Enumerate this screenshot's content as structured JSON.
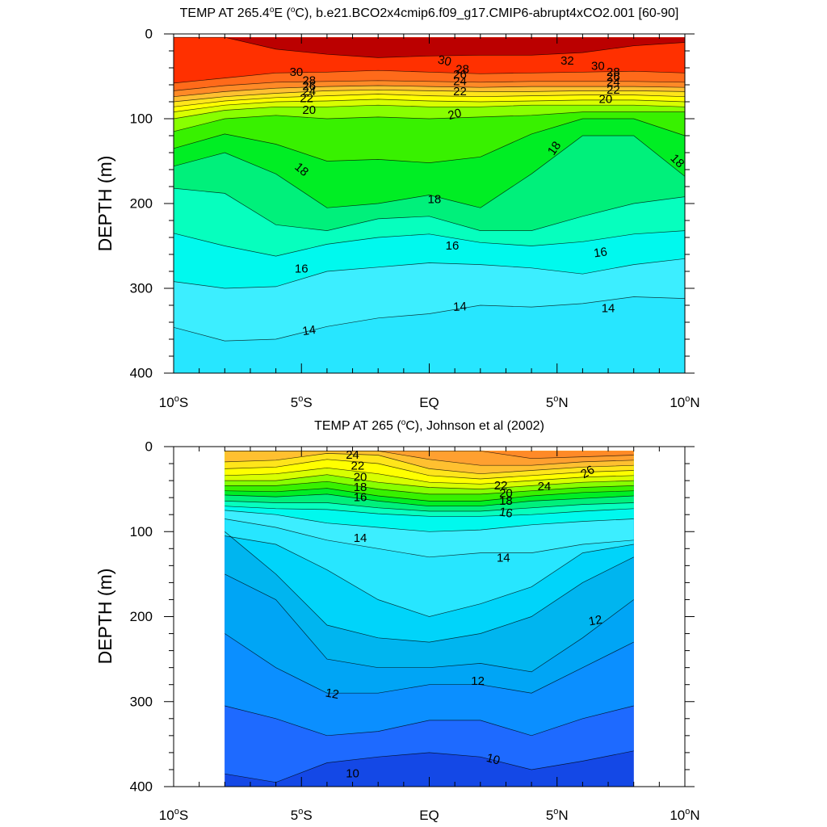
{
  "chart_data": [
    {
      "type": "contour",
      "title": "TEMP AT 265.4°E (°C), b.e21.BCO2x4cmip6.f09_g17.CMIP6-abrupt4xCO2.001 [60-90]",
      "title_parts": {
        "pre": "TEMP AT 265.4",
        "deg": "o",
        "mid": "E (",
        "deg2": "o",
        "post": "C), b.e21.BCO2x4cmip6.f09_g17.CMIP6-abrupt4xCO2.001 [60-90]"
      },
      "ylabel": "DEPTH (m)",
      "xlim": [
        -10,
        10
      ],
      "ylim": [
        0,
        400
      ],
      "y_reversed": true,
      "x_ticks": [
        {
          "v": -10,
          "label": "10°S"
        },
        {
          "v": -5,
          "label": "5°S"
        },
        {
          "v": 0,
          "label": "EQ"
        },
        {
          "v": 5,
          "label": "5°N"
        },
        {
          "v": 10,
          "label": "10°N"
        }
      ],
      "y_ticks": [
        {
          "v": 0,
          "label": "0"
        },
        {
          "v": 100,
          "label": "100"
        },
        {
          "v": 200,
          "label": "200"
        },
        {
          "v": 300,
          "label": "300"
        },
        {
          "v": 400,
          "label": "400"
        }
      ],
      "data_xrange": [
        -10,
        10
      ],
      "data_yrange": [
        4,
        400
      ],
      "levels": [
        {
          "t": 14,
          "y": [
            346,
            362,
            360,
            345,
            335,
            330,
            320,
            322,
            318,
            310,
            312
          ]
        },
        {
          "t": 15,
          "y": [
            292,
            300,
            298,
            280,
            275,
            270,
            272,
            276,
            283,
            272,
            265
          ]
        },
        {
          "t": 16,
          "y": [
            235,
            250,
            262,
            248,
            240,
            236,
            246,
            250,
            245,
            236,
            232
          ]
        },
        {
          "t": 17,
          "y": [
            182,
            188,
            225,
            232,
            218,
            215,
            232,
            232,
            215,
            200,
            192
          ]
        },
        {
          "t": 18,
          "y": [
            156,
            140,
            165,
            205,
            200,
            190,
            205,
            165,
            120,
            120,
            168
          ]
        },
        {
          "t": 19,
          "y": [
            135,
            118,
            130,
            150,
            148,
            152,
            145,
            118,
            100,
            100,
            120
          ]
        },
        {
          "t": 20,
          "y": [
            115,
            100,
            96,
            100,
            98,
            100,
            98,
            96,
            92,
            92,
            92
          ]
        },
        {
          "t": 21,
          "y": [
            100,
            90,
            86,
            86,
            84,
            86,
            86,
            84,
            84,
            84,
            86
          ]
        },
        {
          "t": 22,
          "y": [
            92,
            84,
            80,
            79,
            77,
            79,
            80,
            79,
            78,
            78,
            80
          ]
        },
        {
          "t": 23,
          "y": [
            86,
            79,
            75,
            73,
            71,
            73,
            74,
            73,
            72,
            72,
            74
          ]
        },
        {
          "t": 24,
          "y": [
            80,
            74,
            70,
            67,
            66,
            67,
            68,
            68,
            67,
            67,
            68
          ]
        },
        {
          "t": 26,
          "y": [
            74,
            68,
            64,
            62,
            61,
            62,
            63,
            62,
            62,
            62,
            63
          ]
        },
        {
          "t": 28,
          "y": [
            67,
            61,
            57,
            56,
            55,
            56,
            57,
            56,
            56,
            56,
            57
          ]
        },
        {
          "t": 30,
          "y": [
            58,
            52,
            46,
            45,
            43,
            45,
            47,
            46,
            45,
            44,
            46
          ]
        },
        {
          "t": 32,
          "y": [
            0,
            0,
            18,
            24,
            28,
            26,
            25,
            25,
            22,
            14,
            10
          ]
        }
      ],
      "labels": [
        {
          "text": "30",
          "x": -5.2,
          "y": 45,
          "rot": 0
        },
        {
          "text": "28",
          "x": -4.7,
          "y": 55,
          "rot": 0
        },
        {
          "text": "26",
          "x": -4.7,
          "y": 62,
          "rot": 0
        },
        {
          "text": "24",
          "x": -4.7,
          "y": 68,
          "rot": 0
        },
        {
          "text": "22",
          "x": -4.8,
          "y": 76,
          "rot": 0
        },
        {
          "text": "20",
          "x": -4.7,
          "y": 90,
          "rot": 0
        },
        {
          "text": "18",
          "x": -5.0,
          "y": 160,
          "rot": 40
        },
        {
          "text": "16",
          "x": -5.0,
          "y": 277,
          "rot": 0
        },
        {
          "text": "14",
          "x": -4.7,
          "y": 350,
          "rot": -8
        },
        {
          "text": "30",
          "x": 0.6,
          "y": 32,
          "rot": 12
        },
        {
          "text": "28",
          "x": 1.3,
          "y": 42,
          "rot": 0
        },
        {
          "text": "26",
          "x": 1.2,
          "y": 48,
          "rot": 0
        },
        {
          "text": "24",
          "x": 1.2,
          "y": 56,
          "rot": 0
        },
        {
          "text": "22",
          "x": 1.2,
          "y": 68,
          "rot": 0
        },
        {
          "text": "20",
          "x": 1.0,
          "y": 95,
          "rot": -15
        },
        {
          "text": "18",
          "x": 0.2,
          "y": 195,
          "rot": 0
        },
        {
          "text": "16",
          "x": 0.9,
          "y": 250,
          "rot": 0
        },
        {
          "text": "14",
          "x": 1.2,
          "y": 322,
          "rot": -3
        },
        {
          "text": "32",
          "x": 5.4,
          "y": 32,
          "rot": 0
        },
        {
          "text": "30",
          "x": 6.6,
          "y": 38,
          "rot": 0
        },
        {
          "text": "28",
          "x": 7.2,
          "y": 45,
          "rot": 0
        },
        {
          "text": "26",
          "x": 7.2,
          "y": 51,
          "rot": 0
        },
        {
          "text": "24",
          "x": 7.2,
          "y": 57,
          "rot": 0
        },
        {
          "text": "22",
          "x": 7.2,
          "y": 66,
          "rot": 0
        },
        {
          "text": "20",
          "x": 6.9,
          "y": 77,
          "rot": 0
        },
        {
          "text": "18",
          "x": 4.9,
          "y": 135,
          "rot": -55
        },
        {
          "text": "18",
          "x": 9.7,
          "y": 150,
          "rot": 45
        },
        {
          "text": "16",
          "x": 6.7,
          "y": 258,
          "rot": -8
        },
        {
          "text": "14",
          "x": 7.0,
          "y": 324,
          "rot": 0
        }
      ]
    },
    {
      "type": "contour",
      "title": "TEMP AT 265 (°C), Johnson et al (2002)",
      "title_parts": {
        "pre": "TEMP AT 265 (",
        "deg": "o",
        "mid": "C), Johnson et al (2002)",
        "deg2": "",
        "post": ""
      },
      "ylabel": "DEPTH (m)",
      "xlim": [
        -10,
        10
      ],
      "ylim": [
        0,
        400
      ],
      "y_reversed": true,
      "x_ticks": [
        {
          "v": -10,
          "label": "10°S"
        },
        {
          "v": -5,
          "label": "5°S"
        },
        {
          "v": 0,
          "label": "EQ"
        },
        {
          "v": 5,
          "label": "5°N"
        },
        {
          "v": 10,
          "label": "10°N"
        }
      ],
      "y_ticks": [
        {
          "v": 0,
          "label": "0"
        },
        {
          "v": 100,
          "label": "100"
        },
        {
          "v": 200,
          "label": "200"
        },
        {
          "v": 300,
          "label": "300"
        },
        {
          "v": 400,
          "label": "400"
        }
      ],
      "data_xrange": [
        -8,
        8
      ],
      "data_yrange": [
        5,
        400
      ],
      "levels": [
        {
          "t": 9,
          "y": [
            400,
            400,
            400,
            400,
            400,
            400,
            400,
            400,
            400
          ]
        },
        {
          "t": 10,
          "y": [
            385,
            395,
            372,
            365,
            360,
            365,
            380,
            370,
            358
          ]
        },
        {
          "t": 11,
          "y": [
            305,
            320,
            340,
            335,
            322,
            322,
            340,
            320,
            305
          ]
        },
        {
          "t": 11.5,
          "y": [
            220,
            260,
            290,
            290,
            280,
            280,
            290,
            260,
            230
          ]
        },
        {
          "t": 12,
          "y": [
            150,
            180,
            250,
            260,
            260,
            255,
            265,
            225,
            180
          ]
        },
        {
          "t": 13,
          "y": [
            100,
            150,
            210,
            225,
            230,
            220,
            200,
            160,
            130
          ]
        },
        {
          "t": 13.5,
          "y": [
            105,
            115,
            145,
            180,
            200,
            185,
            165,
            125,
            115
          ]
        },
        {
          "t": 14,
          "y": [
            85,
            95,
            110,
            120,
            130,
            125,
            125,
            115,
            110
          ]
        },
        {
          "t": 15,
          "y": [
            75,
            80,
            90,
            95,
            100,
            98,
            92,
            88,
            85
          ]
        },
        {
          "t": 16,
          "y": [
            70,
            73,
            74,
            79,
            82,
            82,
            80,
            76,
            73
          ]
        },
        {
          "t": 17,
          "y": [
            64,
            66,
            66,
            72,
            76,
            76,
            72,
            68,
            66
          ]
        },
        {
          "t": 18,
          "y": [
            57,
            59,
            56,
            64,
            70,
            70,
            64,
            61,
            58
          ]
        },
        {
          "t": 19,
          "y": [
            52,
            53,
            49,
            58,
            64,
            64,
            58,
            54,
            52
          ]
        },
        {
          "t": 20,
          "y": [
            46,
            46,
            41,
            50,
            56,
            56,
            52,
            48,
            46
          ]
        },
        {
          "t": 21,
          "y": [
            40,
            40,
            33,
            42,
            48,
            50,
            46,
            42,
            40
          ]
        },
        {
          "t": 22,
          "y": [
            34,
            32,
            25,
            32,
            42,
            44,
            40,
            36,
            34
          ]
        },
        {
          "t": 23,
          "y": [
            26,
            24,
            15,
            20,
            34,
            38,
            34,
            30,
            28
          ]
        },
        {
          "t": 24,
          "y": [
            18,
            16,
            8,
            10,
            26,
            32,
            28,
            24,
            22
          ]
        },
        {
          "t": 25,
          "y": [
            5,
            5,
            5,
            5,
            15,
            22,
            22,
            18,
            16
          ]
        },
        {
          "t": 26,
          "y": [
            5,
            5,
            5,
            5,
            5,
            5,
            14,
            12,
            10
          ]
        }
      ],
      "labels": [
        {
          "text": "24",
          "x": -3.0,
          "y": 10,
          "rot": 0
        },
        {
          "text": "22",
          "x": -2.8,
          "y": 23,
          "rot": 0
        },
        {
          "text": "20",
          "x": -2.7,
          "y": 36,
          "rot": 0
        },
        {
          "text": "18",
          "x": -2.7,
          "y": 48,
          "rot": 0
        },
        {
          "text": "16",
          "x": -2.7,
          "y": 60,
          "rot": 0
        },
        {
          "text": "14",
          "x": -2.7,
          "y": 108,
          "rot": 0
        },
        {
          "text": "12",
          "x": -3.8,
          "y": 291,
          "rot": 10
        },
        {
          "text": "10",
          "x": -3.0,
          "y": 385,
          "rot": 0
        },
        {
          "text": "22",
          "x": 2.8,
          "y": 46,
          "rot": 0
        },
        {
          "text": "20",
          "x": 3.0,
          "y": 55,
          "rot": 0
        },
        {
          "text": "18",
          "x": 3.0,
          "y": 64,
          "rot": 0
        },
        {
          "text": "16",
          "x": 3.0,
          "y": 78,
          "rot": 10
        },
        {
          "text": "14",
          "x": 2.9,
          "y": 131,
          "rot": 0
        },
        {
          "text": "12",
          "x": 1.9,
          "y": 276,
          "rot": 0
        },
        {
          "text": "10",
          "x": 2.5,
          "y": 368,
          "rot": 15
        },
        {
          "text": "24",
          "x": 4.5,
          "y": 47,
          "rot": 0
        },
        {
          "text": "26",
          "x": 6.2,
          "y": 30,
          "rot": -30
        },
        {
          "text": "12",
          "x": 6.5,
          "y": 205,
          "rot": -10
        }
      ]
    }
  ],
  "colormap": [
    {
      "t": 9,
      "color": "#1448e6"
    },
    {
      "t": 10,
      "color": "#1e6aff"
    },
    {
      "t": 11,
      "color": "#0b8fff"
    },
    {
      "t": 11.5,
      "color": "#00a5f5"
    },
    {
      "t": 12,
      "color": "#00b5ef"
    },
    {
      "t": 13,
      "color": "#00d4fa"
    },
    {
      "t": 13.5,
      "color": "#27e6ff"
    },
    {
      "t": 14,
      "color": "#3ceeff"
    },
    {
      "t": 15,
      "color": "#00f9ee"
    },
    {
      "t": 16,
      "color": "#06ffbe"
    },
    {
      "t": 17,
      "color": "#00f07b"
    },
    {
      "t": 18,
      "color": "#00ee24"
    },
    {
      "t": 19,
      "color": "#38f100"
    },
    {
      "t": 20,
      "color": "#88ff00"
    },
    {
      "t": 21,
      "color": "#d8ff00"
    },
    {
      "t": 22,
      "color": "#ffff00"
    },
    {
      "t": 23,
      "color": "#ffe51a"
    },
    {
      "t": 24,
      "color": "#ffc030"
    },
    {
      "t": 25,
      "color": "#ffa030"
    },
    {
      "t": 26,
      "color": "#ff8a27"
    },
    {
      "t": 28,
      "color": "#ff6a1a"
    },
    {
      "t": 30,
      "color": "#ff3000"
    },
    {
      "t": 31,
      "color": "#dd0000"
    },
    {
      "t": 32,
      "color": "#bb0000"
    },
    {
      "t": 33,
      "color": "#a80000"
    }
  ]
}
